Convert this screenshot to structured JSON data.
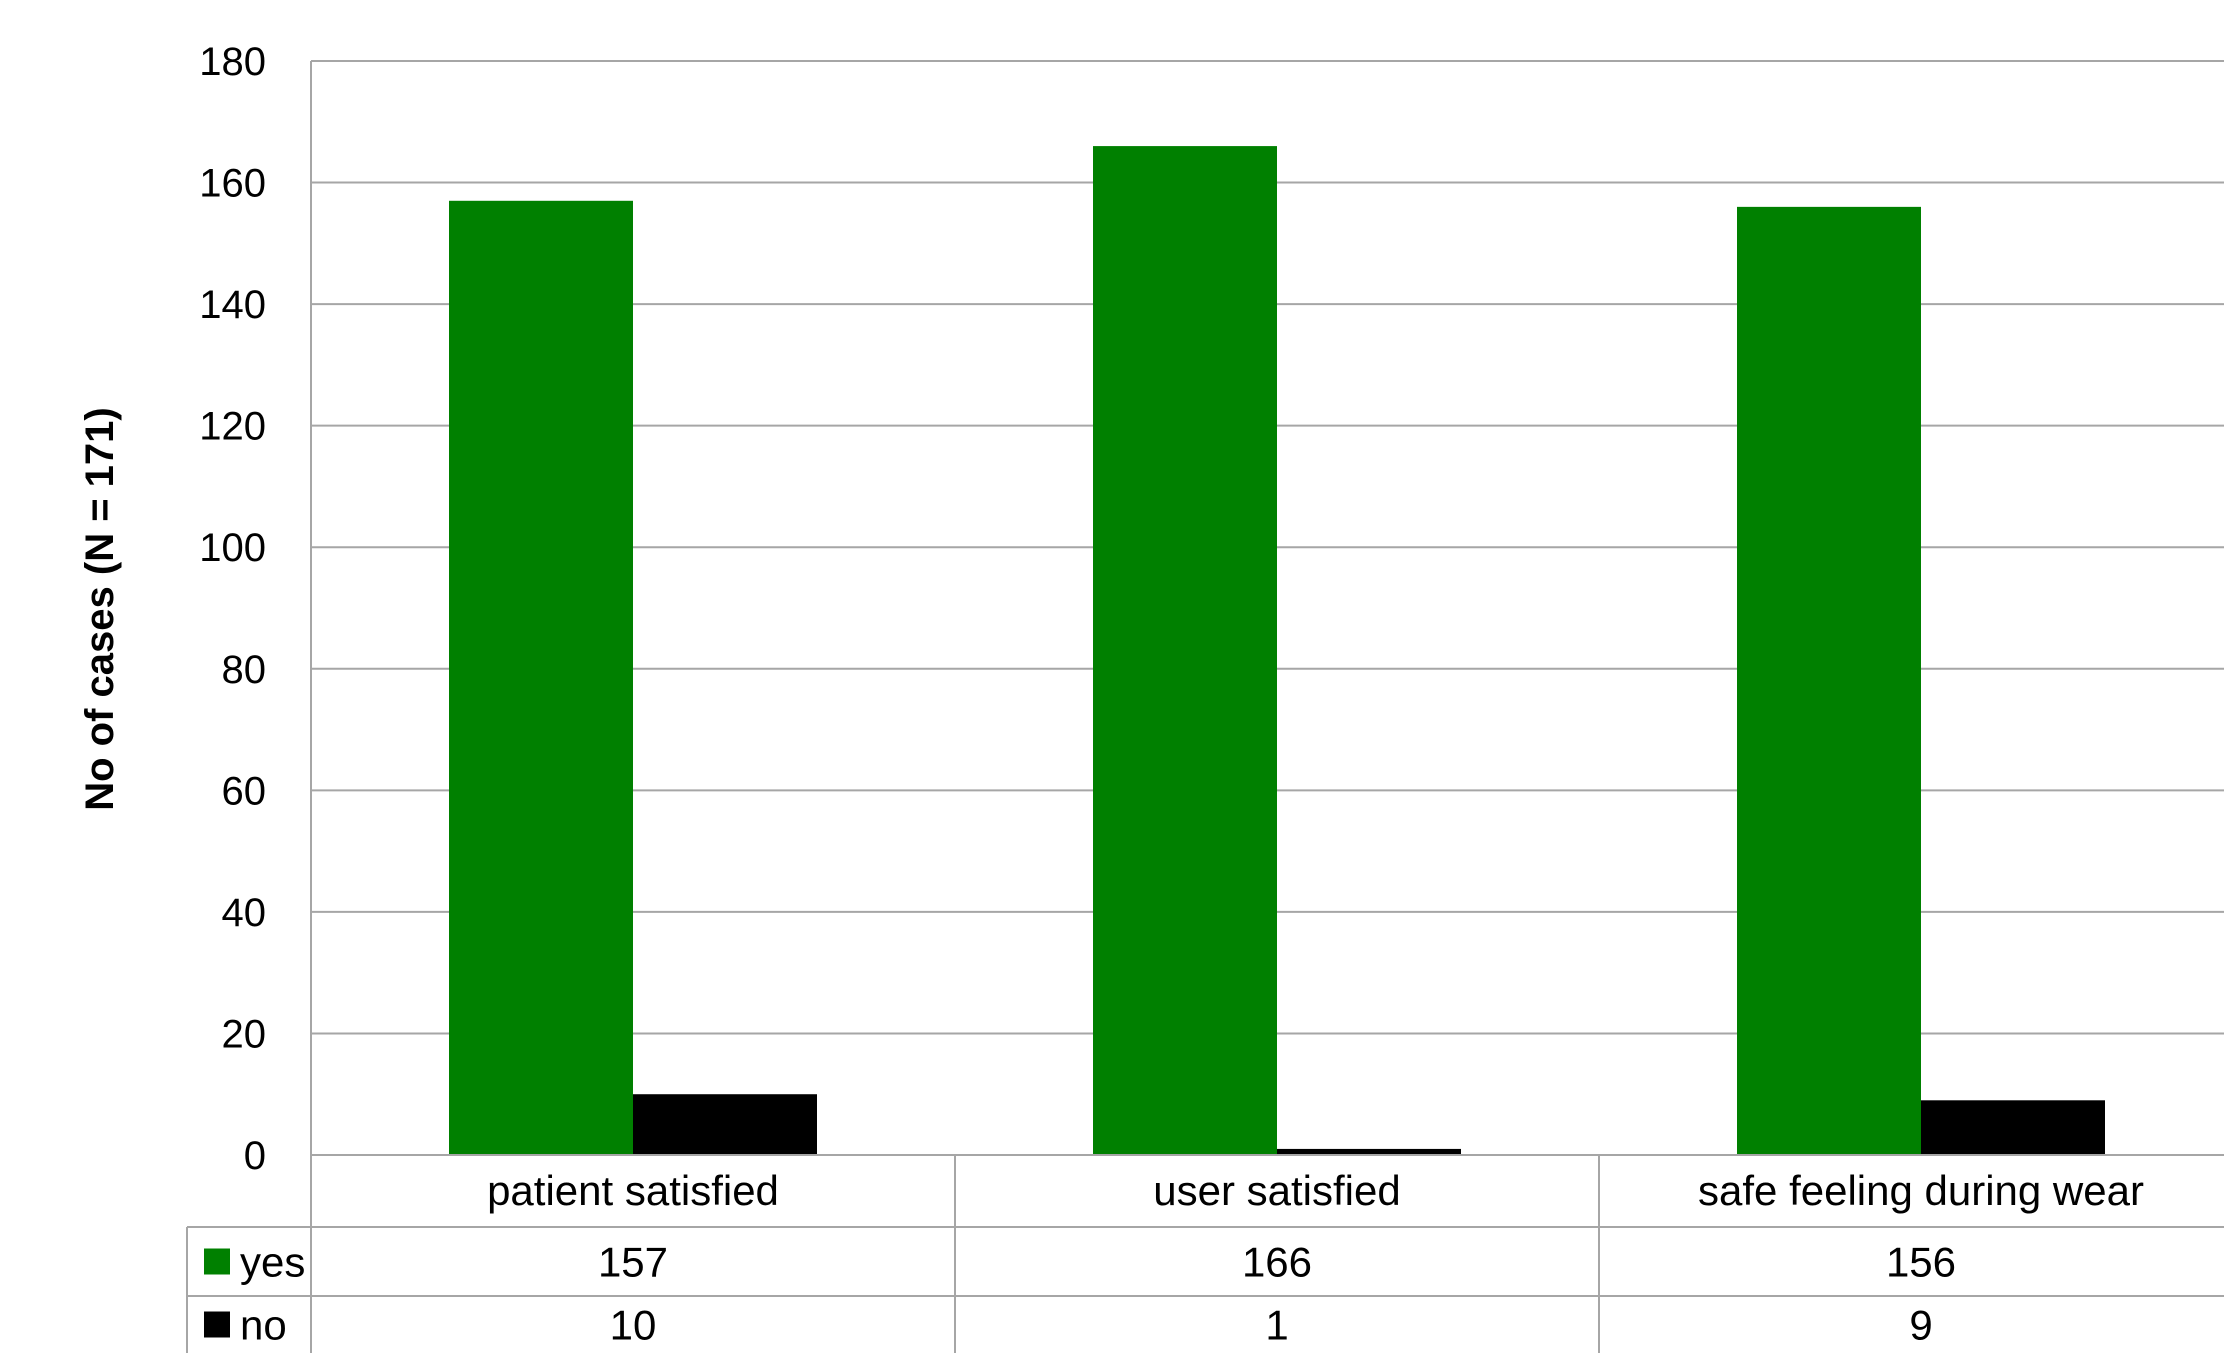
{
  "chart_data": {
    "type": "bar",
    "title": "",
    "xlabel": "",
    "ylabel": "No of cases (N = 171)",
    "categories": [
      "patient satisfied",
      "user satisfied",
      "safe feeling during wear"
    ],
    "series": [
      {
        "name": "yes",
        "values": [
          157,
          166,
          156
        ],
        "color": "#008000"
      },
      {
        "name": "no",
        "values": [
          10,
          1,
          9
        ],
        "color": "#000000"
      }
    ],
    "ylim": [
      0,
      180
    ],
    "yticks": [
      0,
      20,
      40,
      60,
      80,
      100,
      120,
      140,
      160,
      180
    ],
    "grid": true,
    "legend": "data-table"
  }
}
